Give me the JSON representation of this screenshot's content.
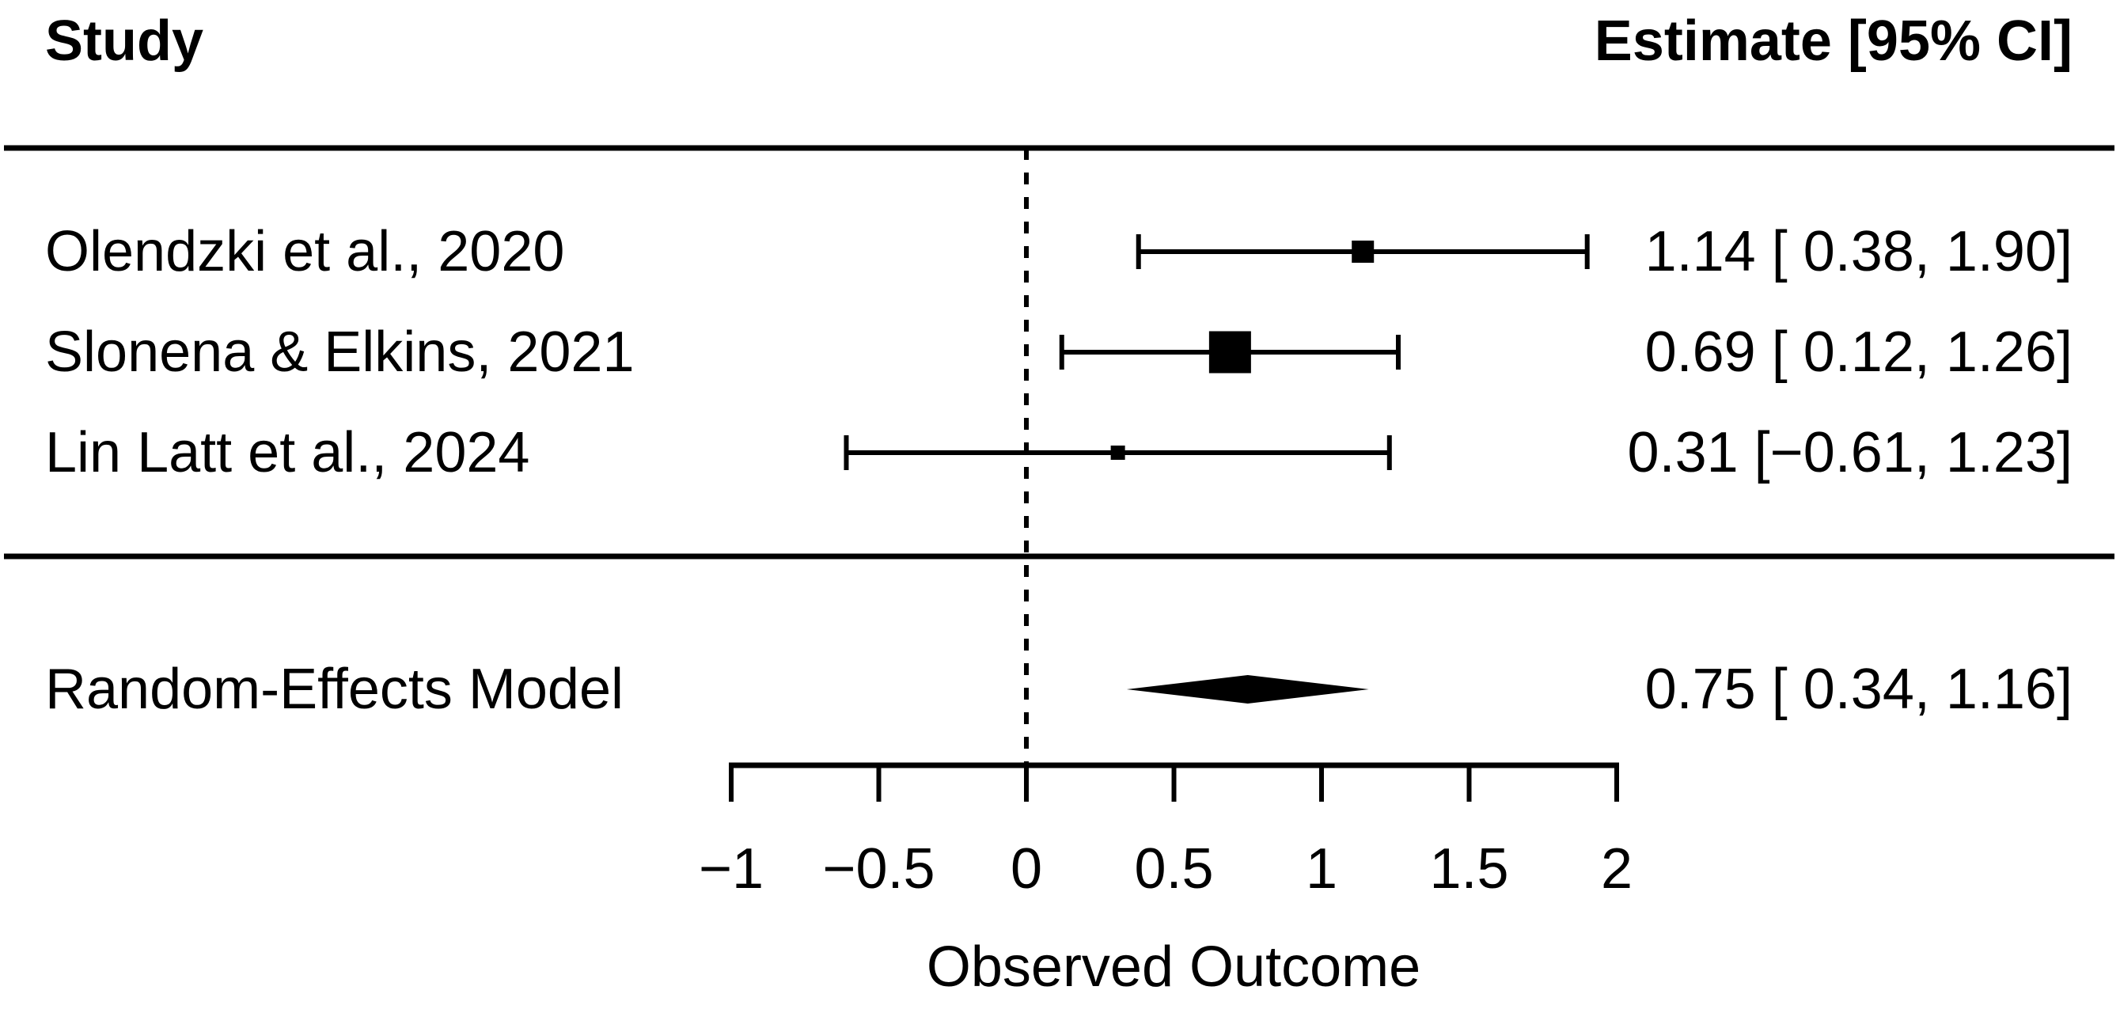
{
  "chart_data": {
    "type": "forest",
    "columns": {
      "study_header": "Study",
      "estimate_header": "Estimate [95% CI]"
    },
    "xlabel": "Observed Outcome",
    "x_range": [
      -1,
      2
    ],
    "x_ticks": [
      {
        "value": -1,
        "label": "−1"
      },
      {
        "value": -0.5,
        "label": "−0.5"
      },
      {
        "value": 0,
        "label": "0"
      },
      {
        "value": 0.5,
        "label": "0.5"
      },
      {
        "value": 1,
        "label": "1"
      },
      {
        "value": 1.5,
        "label": "1.5"
      },
      {
        "value": 2,
        "label": "2"
      }
    ],
    "reference_line": 0,
    "studies": [
      {
        "label": "Olendzki et al., 2020",
        "estimate": 1.14,
        "ci_lower": 0.38,
        "ci_upper": 1.9,
        "estimate_label": "1.14 [ 0.38, 1.90]",
        "square_size": 28
      },
      {
        "label": "Slonena & Elkins, 2021",
        "estimate": 0.69,
        "ci_lower": 0.12,
        "ci_upper": 1.26,
        "estimate_label": "0.69 [ 0.12, 1.26]",
        "square_size": 53
      },
      {
        "label": "Lin Latt et al., 2024",
        "estimate": 0.31,
        "ci_lower": -0.61,
        "ci_upper": 1.23,
        "estimate_label": "0.31 [−0.61, 1.23]",
        "square_size": 18
      }
    ],
    "summary": {
      "label": "Random-Effects Model",
      "estimate": 0.75,
      "ci_lower": 0.34,
      "ci_upper": 1.16,
      "estimate_label": "0.75 [ 0.34, 1.16]"
    },
    "colors": {
      "foreground": "#000000",
      "background": "#ffffff"
    }
  }
}
